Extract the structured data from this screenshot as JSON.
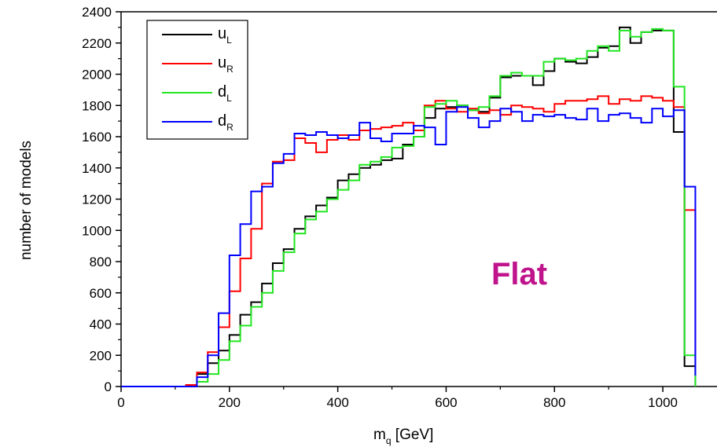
{
  "chart_data": {
    "type": "line",
    "xlabel": "m",
    "xlabel_sub": "q",
    "xlabel_unit": " [GeV]",
    "ylabel": "number of models",
    "xlim": [
      0,
      1100
    ],
    "ylim": [
      0,
      2400
    ],
    "x_ticks": [
      0,
      200,
      400,
      600,
      800,
      1000
    ],
    "y_ticks": [
      0,
      200,
      400,
      600,
      800,
      1000,
      1200,
      1400,
      1600,
      1800,
      2000,
      2200,
      2400
    ],
    "legend_position": "top-left",
    "grid": false,
    "annotation": "Flat",
    "annotation_color": "#c0148c",
    "bin_edges": [
      0,
      20,
      40,
      60,
      80,
      100,
      120,
      140,
      160,
      180,
      200,
      220,
      240,
      260,
      280,
      300,
      320,
      340,
      360,
      380,
      400,
      420,
      440,
      460,
      480,
      500,
      520,
      540,
      560,
      580,
      600,
      620,
      640,
      660,
      680,
      700,
      720,
      740,
      760,
      780,
      800,
      820,
      840,
      860,
      880,
      900,
      920,
      940,
      960,
      980,
      1000,
      1020,
      1040,
      1060
    ],
    "series": [
      {
        "name": "u",
        "sub": "L",
        "color": "#000000",
        "values": [
          0,
          0,
          0,
          0,
          0,
          0,
          10,
          80,
          150,
          230,
          330,
          460,
          540,
          660,
          790,
          880,
          1010,
          1090,
          1160,
          1210,
          1320,
          1360,
          1400,
          1420,
          1450,
          1460,
          1550,
          1600,
          1720,
          1780,
          1790,
          1800,
          1770,
          1760,
          1850,
          1980,
          1990,
          1990,
          1930,
          2020,
          2100,
          2080,
          2070,
          2110,
          2170,
          2180,
          2300,
          2200,
          2270,
          2280,
          2280,
          1630,
          130,
          0
        ]
      },
      {
        "name": "u",
        "sub": "R",
        "color": "#ff0000",
        "values": [
          0,
          0,
          0,
          0,
          0,
          0,
          10,
          90,
          220,
          380,
          610,
          820,
          1010,
          1300,
          1440,
          1450,
          1590,
          1560,
          1500,
          1580,
          1610,
          1580,
          1640,
          1650,
          1660,
          1670,
          1690,
          1640,
          1800,
          1830,
          1780,
          1760,
          1780,
          1750,
          1770,
          1740,
          1800,
          1790,
          1780,
          1760,
          1810,
          1830,
          1830,
          1840,
          1860,
          1810,
          1840,
          1830,
          1860,
          1850,
          1830,
          1790,
          1130,
          110
        ]
      },
      {
        "name": "d",
        "sub": "L",
        "color": "#22e622",
        "values": [
          0,
          0,
          0,
          0,
          0,
          0,
          0,
          30,
          80,
          170,
          290,
          390,
          510,
          600,
          740,
          860,
          980,
          1070,
          1120,
          1200,
          1260,
          1320,
          1420,
          1440,
          1470,
          1530,
          1540,
          1600,
          1790,
          1810,
          1830,
          1800,
          1770,
          1790,
          1860,
          1990,
          2010,
          1990,
          1990,
          2080,
          2100,
          2090,
          2100,
          2150,
          2180,
          2150,
          2280,
          2240,
          2270,
          2290,
          2280,
          1920,
          200,
          0
        ]
      },
      {
        "name": "d",
        "sub": "R",
        "color": "#0000ff",
        "values": [
          0,
          0,
          0,
          0,
          0,
          0,
          0,
          60,
          200,
          470,
          840,
          1040,
          1250,
          1280,
          1430,
          1490,
          1620,
          1610,
          1630,
          1610,
          1590,
          1610,
          1690,
          1590,
          1570,
          1620,
          1620,
          1670,
          1660,
          1550,
          1760,
          1790,
          1720,
          1660,
          1700,
          1780,
          1760,
          1700,
          1740,
          1730,
          1740,
          1720,
          1710,
          1780,
          1700,
          1740,
          1750,
          1720,
          1690,
          1780,
          1730,
          1770,
          1280,
          70
        ]
      }
    ]
  }
}
